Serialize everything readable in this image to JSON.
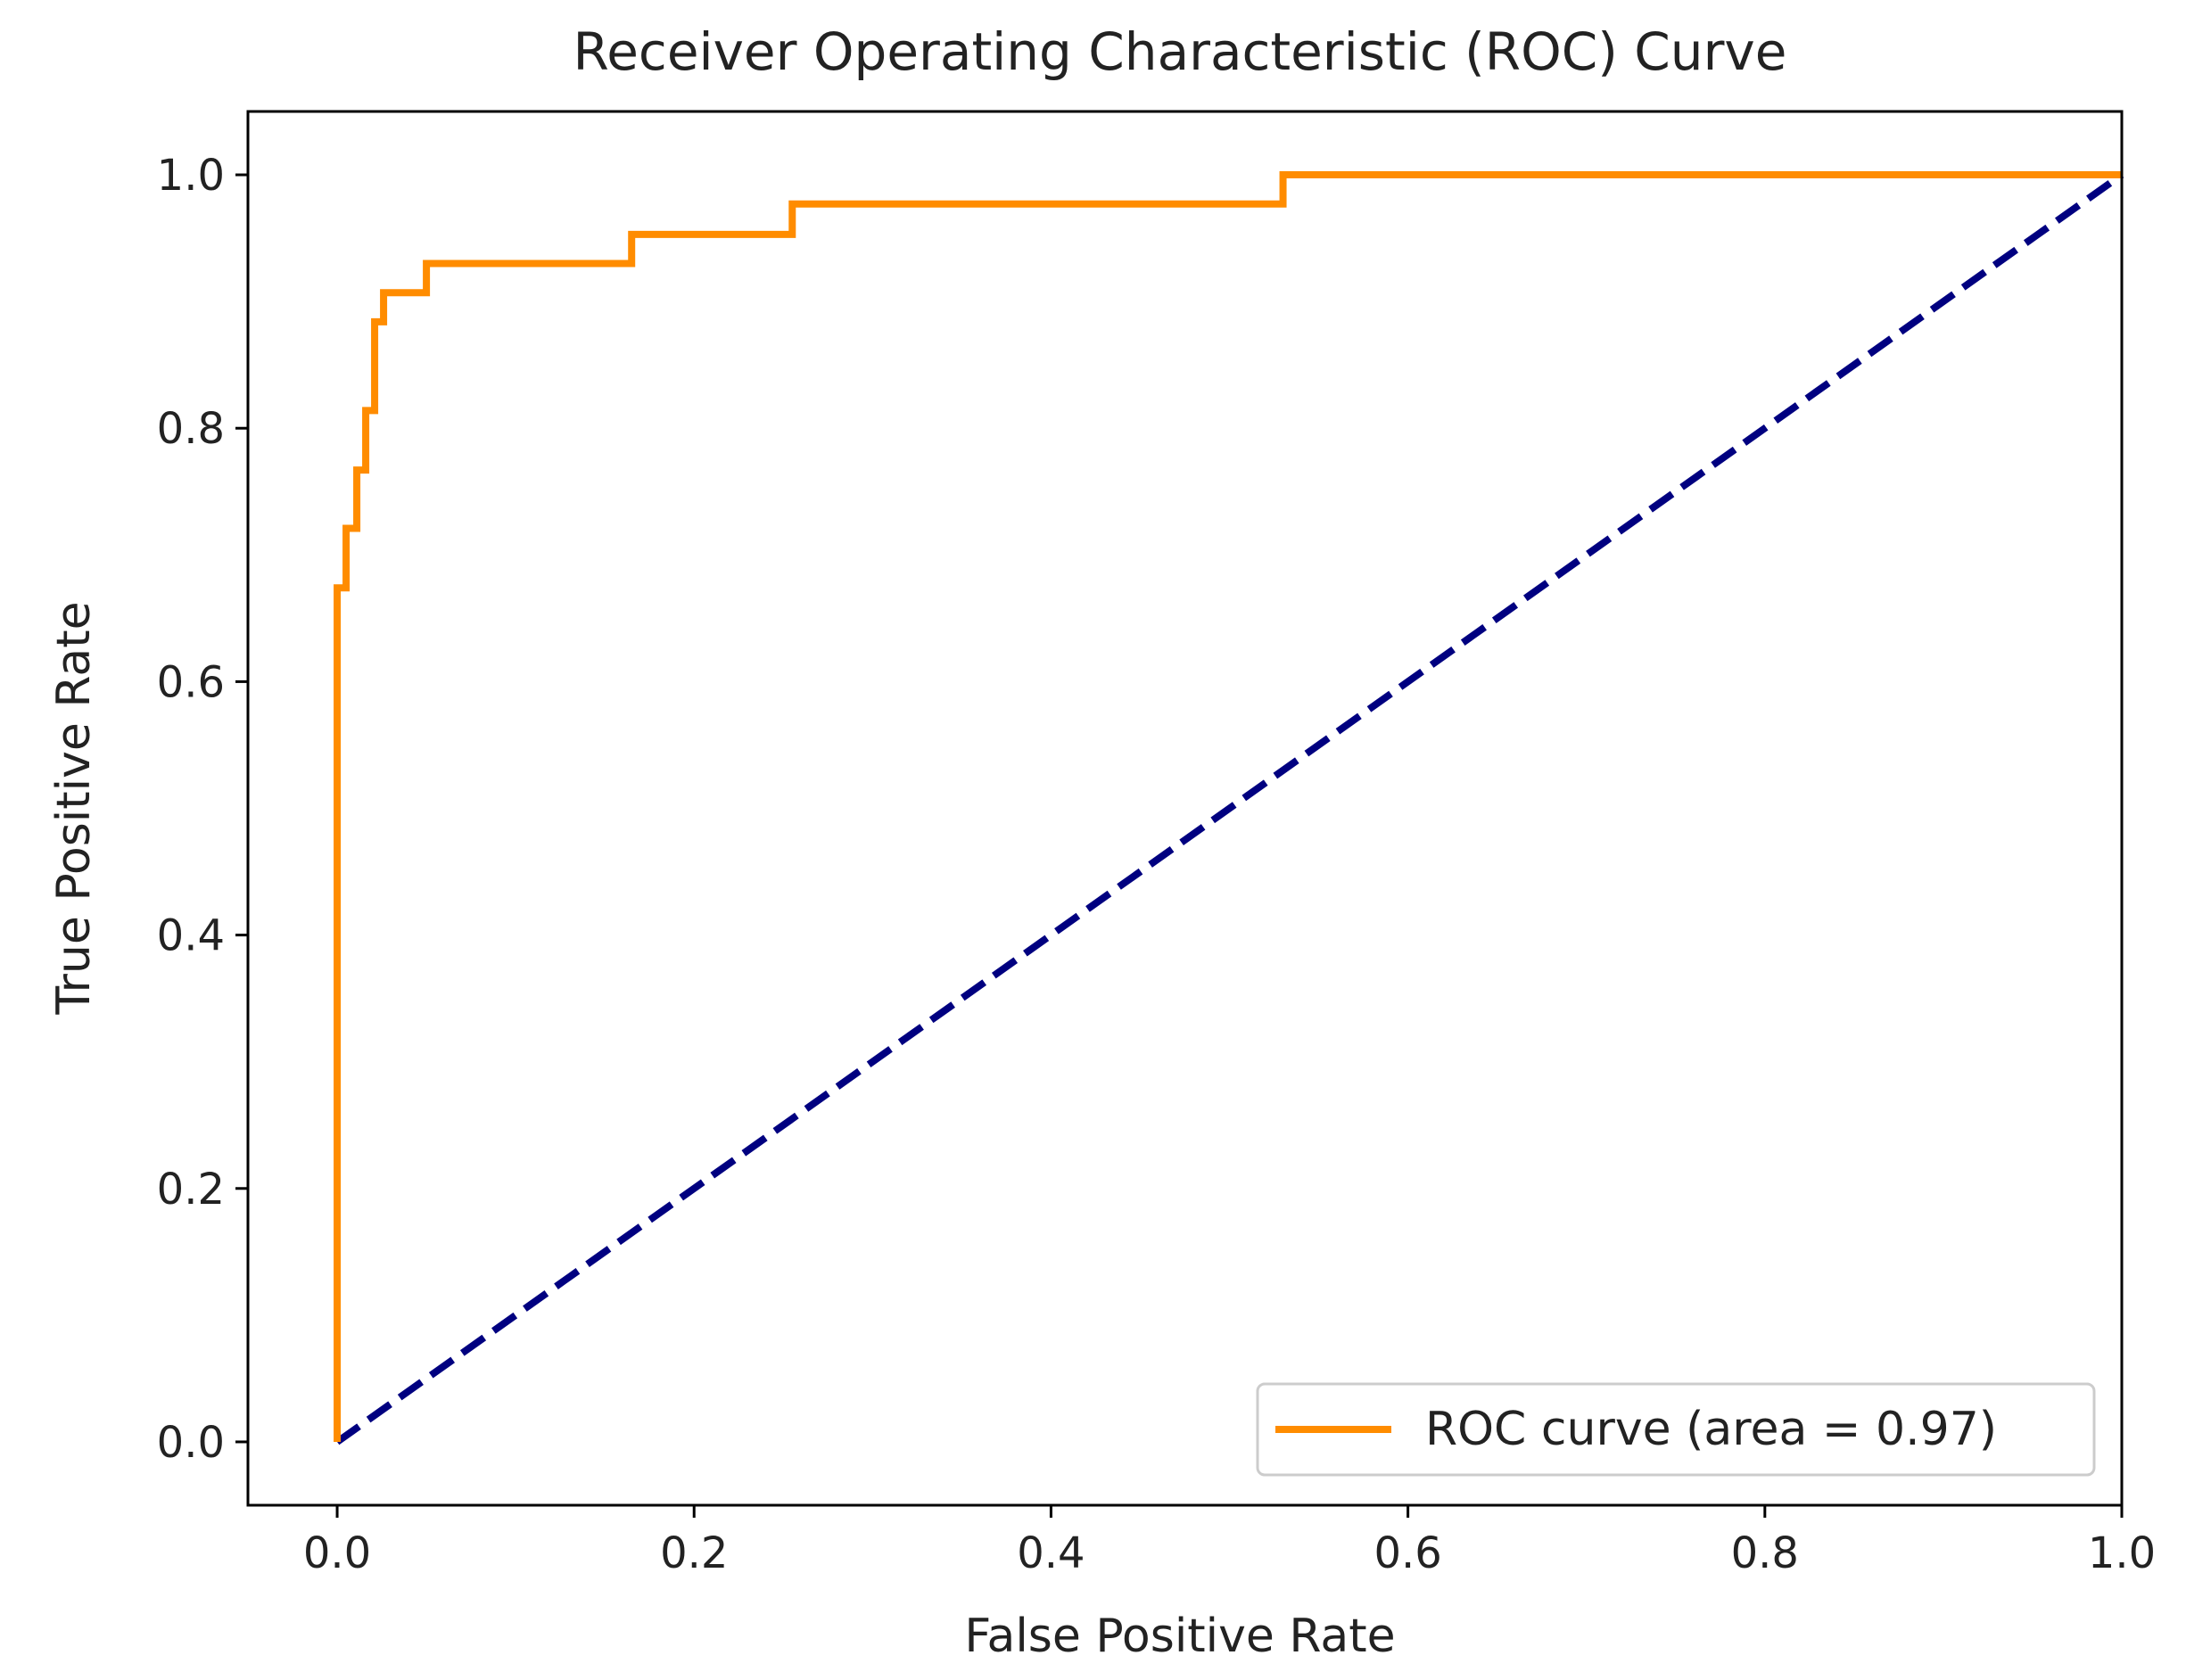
{
  "chart_data": {
    "type": "line",
    "title": "Receiver Operating Characteristic (ROC) Curve",
    "xlabel": "False Positive Rate",
    "ylabel": "True Positive Rate",
    "xlim": [
      -0.05,
      1.0
    ],
    "ylim": [
      -0.05,
      1.05
    ],
    "xticks": [
      "0.0",
      "0.2",
      "0.4",
      "0.6",
      "0.8",
      "1.0"
    ],
    "yticks": [
      "0.0",
      "0.2",
      "0.4",
      "0.6",
      "0.8",
      "1.0"
    ],
    "grid": false,
    "legend_position": "lower-right",
    "series": [
      {
        "name": "ROC curve (area = 0.97)",
        "color": "#ff8c00",
        "style": "solid",
        "x": [
          0,
          0,
          0.005,
          0.005,
          0.011,
          0.011,
          0.016,
          0.016,
          0.021,
          0.021,
          0.026,
          0.026,
          0.05,
          0.05,
          0.165,
          0.165,
          0.255,
          0.255,
          0.53,
          0.53,
          1.0
        ],
        "y": [
          0,
          0.674,
          0.674,
          0.721,
          0.721,
          0.767,
          0.767,
          0.814,
          0.814,
          0.884,
          0.884,
          0.907,
          0.907,
          0.93,
          0.93,
          0.953,
          0.953,
          0.977,
          0.977,
          1.0,
          1.0
        ]
      },
      {
        "color": "#000080",
        "style": "dashed",
        "x": [
          0,
          1
        ],
        "y": [
          0,
          1
        ]
      }
    ]
  }
}
